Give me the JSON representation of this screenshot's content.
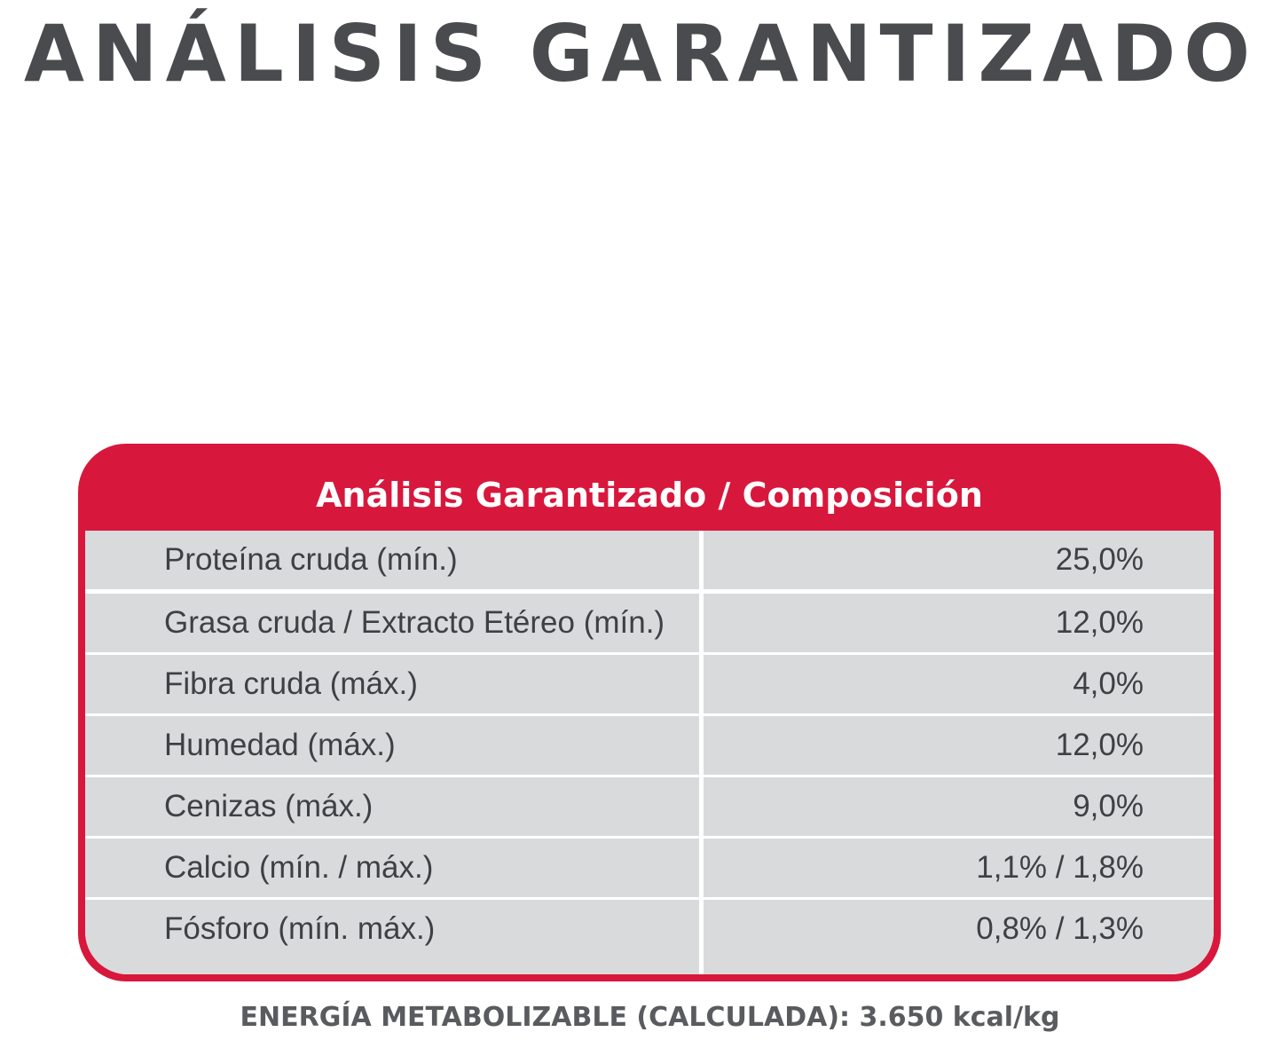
{
  "title": "ANÁLISIS GARANTIZADO",
  "table": {
    "header": "Análisis Garantizado / Composición",
    "rows": [
      {
        "label": "Proteína cruda (mín.)",
        "value": "25,0%"
      },
      {
        "label": "Grasa cruda / Extracto Etéreo (mín.)",
        "value": "12,0%"
      },
      {
        "label": "Fibra cruda (máx.)",
        "value": "4,0%"
      },
      {
        "label": "Humedad (máx.)",
        "value": "12,0%"
      },
      {
        "label": "Cenizas (máx.)",
        "value": "9,0%"
      },
      {
        "label": "Calcio (mín. / máx.)",
        "value": "1,1% / 1,8%"
      },
      {
        "label": "Fósforo (mín. máx.)",
        "value": "0,8% / 1,3%"
      }
    ]
  },
  "footer": "ENERGÍA METABOLIZABLE (CALCULADA): 3.650 kcal/kg",
  "colors": {
    "accent": "#d8173c",
    "row_background": "#d9dadc",
    "title_text": "#4a4b4f"
  }
}
